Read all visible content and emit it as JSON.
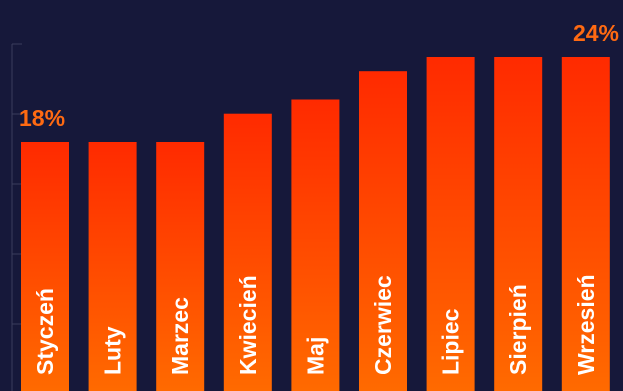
{
  "chart_data": {
    "type": "bar",
    "categories": [
      "Styczeń",
      "Luty",
      "Marzec",
      "Kwiecień",
      "Maj",
      "Czerwiec",
      "Lipiec",
      "Sierpień",
      "Wrzesień"
    ],
    "values": [
      18,
      18,
      18,
      20,
      21,
      23,
      24,
      24,
      24
    ],
    "data_labels": [
      {
        "index": 0,
        "text": "18%"
      },
      {
        "index": 8,
        "text": "24%"
      }
    ],
    "title": "",
    "xlabel": "",
    "ylabel": "",
    "ylim": [
      0,
      26
    ],
    "grid": false,
    "legend": "none",
    "colors": {
      "background": "#16183a",
      "bar_top": "#ff2a00",
      "bar_bottom": "#ff6a00",
      "value_label": "#ff6a12",
      "category_label": "#ffffff",
      "axis": "#3a3d5c"
    }
  }
}
